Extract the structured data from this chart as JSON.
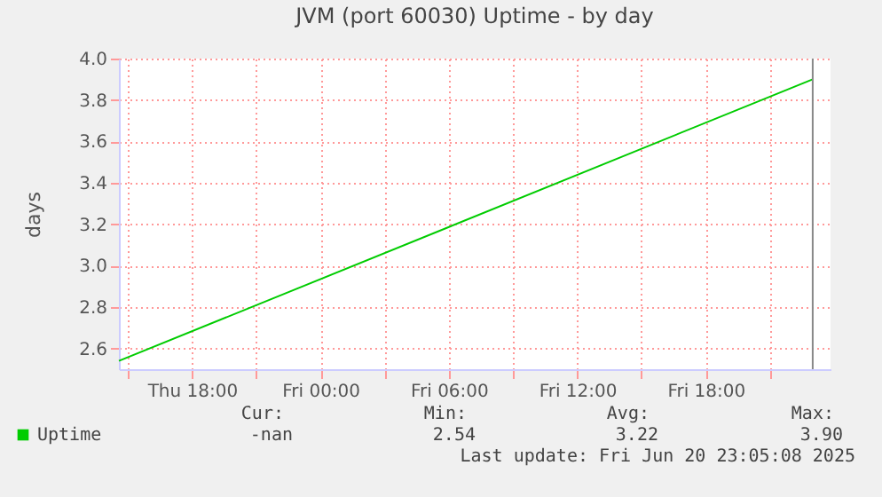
{
  "chart_data": {
    "type": "line",
    "title": "JVM (port 60030) Uptime - by day",
    "ylabel": "days",
    "x": [
      "2025-06-19T14:35",
      "2025-06-20T23:00"
    ],
    "series": [
      {
        "name": "Uptime",
        "color": "#00cc00",
        "values": [
          2.54,
          3.9
        ]
      }
    ],
    "xlim": [
      "2025-06-19T14:35",
      "2025-06-20T23:50"
    ],
    "xticks": [
      {
        "value": "2025-06-19T15:00",
        "label": null
      },
      {
        "value": "2025-06-19T18:00",
        "label": "Thu 18:00"
      },
      {
        "value": "2025-06-19T21:00",
        "label": null
      },
      {
        "value": "2025-06-20T00:00",
        "label": "Fri 00:00"
      },
      {
        "value": "2025-06-20T03:00",
        "label": null
      },
      {
        "value": "2025-06-20T06:00",
        "label": "Fri 06:00"
      },
      {
        "value": "2025-06-20T09:00",
        "label": null
      },
      {
        "value": "2025-06-20T12:00",
        "label": "Fri 12:00"
      },
      {
        "value": "2025-06-20T15:00",
        "label": null
      },
      {
        "value": "2025-06-20T18:00",
        "label": "Fri 18:00"
      },
      {
        "value": "2025-06-20T21:00",
        "label": null
      }
    ],
    "ylim": [
      2.5,
      4.0
    ],
    "yticks": [
      2.6,
      2.8,
      {
        "value": 3,
        "label": "3.0"
      },
      3.2,
      3.4,
      3.6,
      3.8,
      {
        "value": 4,
        "label": "4.0"
      }
    ],
    "grid": true,
    "legend": "bottom left",
    "ref_lines": [
      {
        "axis": "x",
        "value": "2025-06-20T23:00",
        "color": "#888888"
      }
    ],
    "annotations": [
      "Cur:",
      "Min:",
      "Avg:",
      "Max:",
      "-nan",
      "2.54",
      "3.22",
      "3.90",
      "Last update: Fri Jun 20 23:05:08 2025"
    ]
  }
}
